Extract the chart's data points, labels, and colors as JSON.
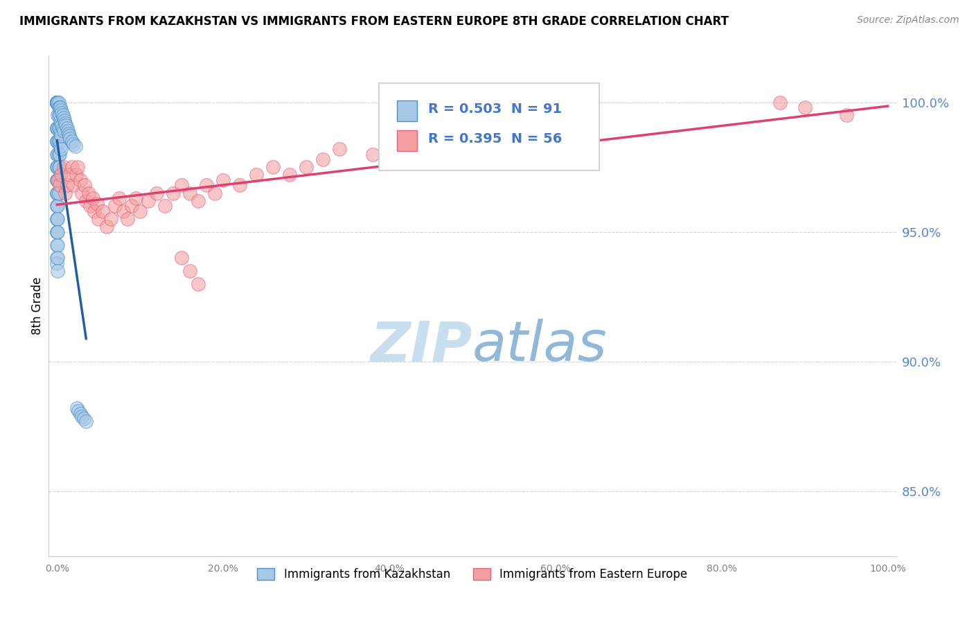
{
  "title": "IMMIGRANTS FROM KAZAKHSTAN VS IMMIGRANTS FROM EASTERN EUROPE 8TH GRADE CORRELATION CHART",
  "source": "Source: ZipAtlas.com",
  "ylabel": "8th Grade",
  "legend_label1": "Immigrants from Kazakhstan",
  "legend_label2": "Immigrants from Eastern Europe",
  "R1": 0.503,
  "N1": 91,
  "R2": 0.395,
  "N2": 56,
  "color1": "#a8c8e8",
  "color2": "#f4a0a0",
  "edge_color1": "#4a90c4",
  "edge_color2": "#e06080",
  "line_color1": "#2060a0",
  "line_color2": "#e04070",
  "watermark_zip": "#c8dff0",
  "watermark_atlas": "#90b8d8",
  "y_ticks": [
    0.85,
    0.9,
    0.95,
    1.0
  ],
  "y_tick_labels": [
    "85.0%",
    "90.0%",
    "95.0%",
    "100.0%"
  ],
  "x_ticks": [
    0.0,
    0.2,
    0.4,
    0.6,
    0.8,
    1.0
  ],
  "x_tick_labels": [
    "0.0%",
    "20.0%",
    "40.0%",
    "60.0%",
    "80.0%",
    "100.0%"
  ],
  "kazakhstan_x": [
    0.0,
    0.0,
    0.0,
    0.0,
    0.0,
    0.0,
    0.0,
    0.0,
    0.0,
    0.0,
    0.0,
    0.0,
    0.0,
    0.0,
    0.0,
    0.0,
    0.0,
    0.0,
    0.0,
    0.0,
    0.0,
    0.0,
    0.0,
    0.0,
    0.0,
    0.0,
    0.0,
    0.0,
    0.0,
    0.0,
    0.001,
    0.001,
    0.001,
    0.001,
    0.001,
    0.001,
    0.001,
    0.001,
    0.001,
    0.001,
    0.001,
    0.001,
    0.001,
    0.001,
    0.001,
    0.002,
    0.002,
    0.002,
    0.002,
    0.002,
    0.002,
    0.002,
    0.002,
    0.002,
    0.003,
    0.003,
    0.003,
    0.003,
    0.003,
    0.003,
    0.004,
    0.004,
    0.004,
    0.004,
    0.005,
    0.005,
    0.005,
    0.005,
    0.006,
    0.006,
    0.007,
    0.007,
    0.008,
    0.008,
    0.009,
    0.01,
    0.011,
    0.012,
    0.013,
    0.014,
    0.015,
    0.016,
    0.018,
    0.02,
    0.022,
    0.024,
    0.026,
    0.028,
    0.03,
    0.032,
    0.035
  ],
  "kazakhstan_y": [
    1.0,
    1.0,
    1.0,
    1.0,
    1.0,
    1.0,
    1.0,
    1.0,
    1.0,
    1.0,
    0.99,
    0.99,
    0.985,
    0.985,
    0.98,
    0.975,
    0.975,
    0.97,
    0.97,
    0.965,
    0.965,
    0.96,
    0.96,
    0.955,
    0.955,
    0.95,
    0.95,
    0.945,
    0.94,
    0.938,
    1.0,
    1.0,
    0.995,
    0.99,
    0.985,
    0.98,
    0.975,
    0.97,
    0.965,
    0.96,
    0.955,
    0.95,
    0.945,
    0.94,
    0.935,
    1.0,
    0.998,
    0.995,
    0.99,
    0.985,
    0.98,
    0.975,
    0.97,
    0.965,
    0.998,
    0.995,
    0.99,
    0.985,
    0.98,
    0.975,
    0.998,
    0.993,
    0.988,
    0.983,
    0.997,
    0.992,
    0.987,
    0.982,
    0.996,
    0.991,
    0.995,
    0.99,
    0.994,
    0.989,
    0.993,
    0.992,
    0.991,
    0.99,
    0.989,
    0.988,
    0.987,
    0.986,
    0.985,
    0.984,
    0.983,
    0.882,
    0.881,
    0.88,
    0.879,
    0.878,
    0.877
  ],
  "eastern_x": [
    0.001,
    0.003,
    0.005,
    0.008,
    0.01,
    0.012,
    0.015,
    0.018,
    0.02,
    0.023,
    0.025,
    0.028,
    0.03,
    0.033,
    0.035,
    0.038,
    0.04,
    0.043,
    0.045,
    0.048,
    0.05,
    0.055,
    0.06,
    0.065,
    0.07,
    0.075,
    0.08,
    0.085,
    0.09,
    0.095,
    0.1,
    0.11,
    0.12,
    0.13,
    0.14,
    0.15,
    0.16,
    0.17,
    0.18,
    0.19,
    0.2,
    0.22,
    0.24,
    0.26,
    0.28,
    0.3,
    0.32,
    0.34,
    0.38,
    0.42,
    0.15,
    0.16,
    0.17,
    0.87,
    0.9,
    0.95
  ],
  "eastern_y": [
    0.97,
    0.968,
    0.972,
    0.975,
    0.965,
    0.968,
    0.972,
    0.975,
    0.968,
    0.972,
    0.975,
    0.97,
    0.965,
    0.968,
    0.962,
    0.965,
    0.96,
    0.963,
    0.958,
    0.961,
    0.955,
    0.958,
    0.952,
    0.955,
    0.96,
    0.963,
    0.958,
    0.955,
    0.96,
    0.963,
    0.958,
    0.962,
    0.965,
    0.96,
    0.965,
    0.968,
    0.965,
    0.962,
    0.968,
    0.965,
    0.97,
    0.968,
    0.972,
    0.975,
    0.972,
    0.975,
    0.978,
    0.982,
    0.98,
    0.985,
    0.94,
    0.935,
    0.93,
    1.0,
    0.998,
    0.995
  ]
}
